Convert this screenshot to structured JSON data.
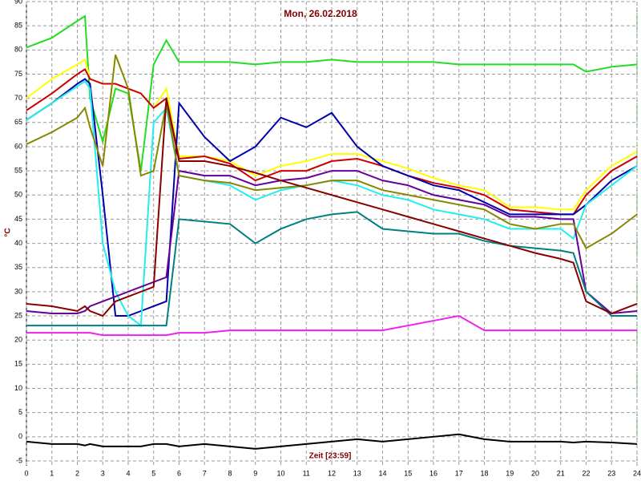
{
  "chart_data": {
    "type": "line",
    "title": "Mon, 26.02.2018",
    "x_label": "Zeit [23:59]",
    "y_label": "°C",
    "x": [
      0,
      1,
      2,
      2.3,
      2.5,
      3,
      3.5,
      4,
      4.5,
      5,
      5.5,
      6,
      7,
      8,
      9,
      10,
      11,
      12,
      13,
      14,
      15,
      16,
      17,
      18,
      19,
      20,
      21,
      21.5,
      22,
      23,
      24
    ],
    "xlim": [
      0,
      24
    ],
    "xticks": [
      0,
      1,
      2,
      3,
      4,
      5,
      6,
      7,
      8,
      9,
      10,
      11,
      12,
      13,
      14,
      15,
      16,
      17,
      18,
      19,
      20,
      21,
      22,
      23,
      24
    ],
    "ylim": [
      -6,
      90
    ],
    "yticks": [
      -5,
      0,
      5,
      10,
      15,
      20,
      25,
      30,
      35,
      40,
      45,
      50,
      55,
      60,
      65,
      70,
      75,
      80,
      85,
      90
    ],
    "grid": true,
    "series": [
      {
        "color": "#22dd22",
        "values": [
          80.5,
          82.5,
          86,
          87,
          70,
          61,
          72,
          71,
          55,
          77,
          82,
          77.5,
          77.5,
          77.5,
          77,
          77.5,
          77.5,
          78,
          77.5,
          77.5,
          77.5,
          77.5,
          77,
          77,
          77,
          77,
          77,
          77,
          75.5,
          76.5,
          77
        ]
      },
      {
        "color": "#ffff00",
        "values": [
          70,
          74,
          77,
          78,
          74,
          73,
          73,
          72,
          71,
          68,
          72,
          58,
          58,
          57,
          54,
          56,
          57,
          58.5,
          58.5,
          57,
          55.5,
          53.5,
          52,
          51,
          47.5,
          47.5,
          47,
          47,
          51,
          56,
          59
        ]
      },
      {
        "color": "#cc0000",
        "values": [
          67.5,
          71,
          75,
          76,
          74,
          73,
          73,
          72,
          71,
          68,
          70,
          57.5,
          58,
          56.5,
          53,
          55,
          55,
          57,
          57.5,
          56,
          54,
          52.5,
          51.5,
          50,
          47,
          46.5,
          46,
          46,
          50,
          55,
          58
        ]
      },
      {
        "color": "#0000aa",
        "values": [
          65.5,
          69,
          73,
          74,
          73,
          50,
          25,
          25,
          26,
          27,
          28,
          69,
          62,
          57,
          60,
          66,
          64,
          67,
          60,
          56,
          54,
          52,
          51,
          48.5,
          46,
          46,
          46,
          46,
          48,
          53,
          56
        ]
      },
      {
        "color": "#22eeee",
        "values": [
          65.5,
          69,
          72.5,
          73.5,
          72,
          40,
          30,
          25,
          23,
          65,
          68,
          54,
          53,
          52,
          49,
          51,
          52,
          53,
          52,
          50,
          49,
          47,
          46,
          45,
          43,
          43,
          43,
          41,
          48,
          52,
          56
        ]
      },
      {
        "color": "#660099",
        "values": [
          26,
          25.5,
          25.5,
          26,
          27,
          28,
          29,
          30,
          31,
          32,
          33,
          55,
          54,
          54,
          52,
          53,
          53.5,
          55,
          55,
          53,
          52,
          50,
          49,
          48,
          45.5,
          45.5,
          45,
          45,
          30,
          25.5,
          26
        ]
      },
      {
        "color": "#888800",
        "values": [
          60.5,
          63,
          66,
          68,
          64,
          56,
          79,
          72,
          54,
          55,
          69,
          54,
          53,
          52.5,
          51,
          51.5,
          52,
          53,
          53,
          51,
          50,
          49,
          48,
          47,
          44,
          43,
          44,
          44,
          39,
          42,
          46
        ]
      },
      {
        "color": "#008080",
        "values": [
          23,
          23,
          23,
          23,
          23,
          23,
          23,
          23,
          23,
          23,
          23,
          45,
          44.5,
          44,
          40,
          43,
          45,
          46,
          46.5,
          43,
          42.5,
          42,
          42,
          40.5,
          39.5,
          39,
          38.5,
          38,
          30,
          25,
          25
        ]
      },
      {
        "color": "#880000",
        "values": [
          27.5,
          27,
          26,
          27,
          26,
          25,
          28,
          29,
          30,
          31,
          70,
          57,
          57,
          56,
          54.6,
          53,
          51.5,
          50,
          48.5,
          47,
          45.5,
          44,
          42.5,
          41,
          39.5,
          38,
          36.8,
          36,
          28,
          25.5,
          27.5
        ]
      },
      {
        "color": "#ee22ee",
        "values": [
          21.5,
          21.5,
          21.5,
          21.5,
          21.5,
          21,
          21,
          21,
          21,
          21,
          21,
          21.5,
          21.5,
          22,
          22,
          22,
          22,
          22,
          22,
          22,
          23,
          24,
          25,
          22,
          22,
          22,
          22,
          22,
          22,
          22,
          22
        ]
      },
      {
        "color": "#000000",
        "values": [
          -1,
          -1.5,
          -1.5,
          -1.8,
          -1.5,
          -2,
          -2,
          -2,
          -2,
          -1.5,
          -1.5,
          -2,
          -1.5,
          -2,
          -2.5,
          -2,
          -1.5,
          -1,
          -0.5,
          -1,
          -0.5,
          0,
          0.5,
          -0.5,
          -1,
          -1,
          -1,
          -1.2,
          -1,
          -1.2,
          -1.5
        ]
      }
    ]
  }
}
